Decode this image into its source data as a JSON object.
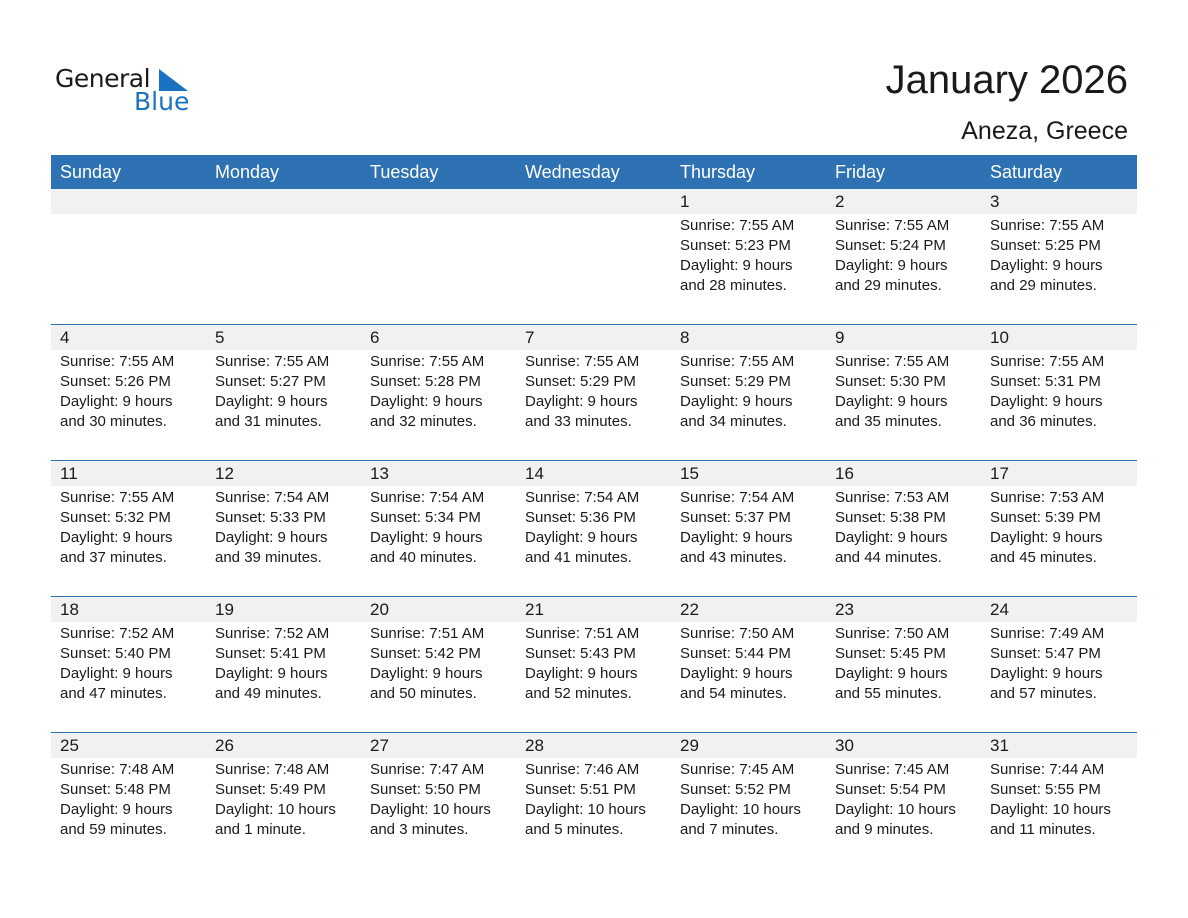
{
  "logo": {
    "general": "General",
    "blue": "Blue"
  },
  "title": "January 2026",
  "location": "Aneza, Greece",
  "colors": {
    "header": "#2e72b4",
    "band": "#f1f1f1",
    "logo_blue": "#1a72c0"
  },
  "weekdays": [
    "Sunday",
    "Monday",
    "Tuesday",
    "Wednesday",
    "Thursday",
    "Friday",
    "Saturday"
  ],
  "weeks": [
    [
      null,
      null,
      null,
      null,
      {
        "day": "1",
        "sunrise": "Sunrise: 7:55 AM",
        "sunset": "Sunset: 5:23 PM",
        "daylight": "Daylight: 9 hours\nand 28 minutes."
      },
      {
        "day": "2",
        "sunrise": "Sunrise: 7:55 AM",
        "sunset": "Sunset: 5:24 PM",
        "daylight": "Daylight: 9 hours\nand 29 minutes."
      },
      {
        "day": "3",
        "sunrise": "Sunrise: 7:55 AM",
        "sunset": "Sunset: 5:25 PM",
        "daylight": "Daylight: 9 hours\nand 29 minutes."
      }
    ],
    [
      {
        "day": "4",
        "sunrise": "Sunrise: 7:55 AM",
        "sunset": "Sunset: 5:26 PM",
        "daylight": "Daylight: 9 hours\nand 30 minutes."
      },
      {
        "day": "5",
        "sunrise": "Sunrise: 7:55 AM",
        "sunset": "Sunset: 5:27 PM",
        "daylight": "Daylight: 9 hours\nand 31 minutes."
      },
      {
        "day": "6",
        "sunrise": "Sunrise: 7:55 AM",
        "sunset": "Sunset: 5:28 PM",
        "daylight": "Daylight: 9 hours\nand 32 minutes."
      },
      {
        "day": "7",
        "sunrise": "Sunrise: 7:55 AM",
        "sunset": "Sunset: 5:29 PM",
        "daylight": "Daylight: 9 hours\nand 33 minutes."
      },
      {
        "day": "8",
        "sunrise": "Sunrise: 7:55 AM",
        "sunset": "Sunset: 5:29 PM",
        "daylight": "Daylight: 9 hours\nand 34 minutes."
      },
      {
        "day": "9",
        "sunrise": "Sunrise: 7:55 AM",
        "sunset": "Sunset: 5:30 PM",
        "daylight": "Daylight: 9 hours\nand 35 minutes."
      },
      {
        "day": "10",
        "sunrise": "Sunrise: 7:55 AM",
        "sunset": "Sunset: 5:31 PM",
        "daylight": "Daylight: 9 hours\nand 36 minutes."
      }
    ],
    [
      {
        "day": "11",
        "sunrise": "Sunrise: 7:55 AM",
        "sunset": "Sunset: 5:32 PM",
        "daylight": "Daylight: 9 hours\nand 37 minutes."
      },
      {
        "day": "12",
        "sunrise": "Sunrise: 7:54 AM",
        "sunset": "Sunset: 5:33 PM",
        "daylight": "Daylight: 9 hours\nand 39 minutes."
      },
      {
        "day": "13",
        "sunrise": "Sunrise: 7:54 AM",
        "sunset": "Sunset: 5:34 PM",
        "daylight": "Daylight: 9 hours\nand 40 minutes."
      },
      {
        "day": "14",
        "sunrise": "Sunrise: 7:54 AM",
        "sunset": "Sunset: 5:36 PM",
        "daylight": "Daylight: 9 hours\nand 41 minutes."
      },
      {
        "day": "15",
        "sunrise": "Sunrise: 7:54 AM",
        "sunset": "Sunset: 5:37 PM",
        "daylight": "Daylight: 9 hours\nand 43 minutes."
      },
      {
        "day": "16",
        "sunrise": "Sunrise: 7:53 AM",
        "sunset": "Sunset: 5:38 PM",
        "daylight": "Daylight: 9 hours\nand 44 minutes."
      },
      {
        "day": "17",
        "sunrise": "Sunrise: 7:53 AM",
        "sunset": "Sunset: 5:39 PM",
        "daylight": "Daylight: 9 hours\nand 45 minutes."
      }
    ],
    [
      {
        "day": "18",
        "sunrise": "Sunrise: 7:52 AM",
        "sunset": "Sunset: 5:40 PM",
        "daylight": "Daylight: 9 hours\nand 47 minutes."
      },
      {
        "day": "19",
        "sunrise": "Sunrise: 7:52 AM",
        "sunset": "Sunset: 5:41 PM",
        "daylight": "Daylight: 9 hours\nand 49 minutes."
      },
      {
        "day": "20",
        "sunrise": "Sunrise: 7:51 AM",
        "sunset": "Sunset: 5:42 PM",
        "daylight": "Daylight: 9 hours\nand 50 minutes."
      },
      {
        "day": "21",
        "sunrise": "Sunrise: 7:51 AM",
        "sunset": "Sunset: 5:43 PM",
        "daylight": "Daylight: 9 hours\nand 52 minutes."
      },
      {
        "day": "22",
        "sunrise": "Sunrise: 7:50 AM",
        "sunset": "Sunset: 5:44 PM",
        "daylight": "Daylight: 9 hours\nand 54 minutes."
      },
      {
        "day": "23",
        "sunrise": "Sunrise: 7:50 AM",
        "sunset": "Sunset: 5:45 PM",
        "daylight": "Daylight: 9 hours\nand 55 minutes."
      },
      {
        "day": "24",
        "sunrise": "Sunrise: 7:49 AM",
        "sunset": "Sunset: 5:47 PM",
        "daylight": "Daylight: 9 hours\nand 57 minutes."
      }
    ],
    [
      {
        "day": "25",
        "sunrise": "Sunrise: 7:48 AM",
        "sunset": "Sunset: 5:48 PM",
        "daylight": "Daylight: 9 hours\nand 59 minutes."
      },
      {
        "day": "26",
        "sunrise": "Sunrise: 7:48 AM",
        "sunset": "Sunset: 5:49 PM",
        "daylight": "Daylight: 10 hours\nand 1 minute."
      },
      {
        "day": "27",
        "sunrise": "Sunrise: 7:47 AM",
        "sunset": "Sunset: 5:50 PM",
        "daylight": "Daylight: 10 hours\nand 3 minutes."
      },
      {
        "day": "28",
        "sunrise": "Sunrise: 7:46 AM",
        "sunset": "Sunset: 5:51 PM",
        "daylight": "Daylight: 10 hours\nand 5 minutes."
      },
      {
        "day": "29",
        "sunrise": "Sunrise: 7:45 AM",
        "sunset": "Sunset: 5:52 PM",
        "daylight": "Daylight: 10 hours\nand 7 minutes."
      },
      {
        "day": "30",
        "sunrise": "Sunrise: 7:45 AM",
        "sunset": "Sunset: 5:54 PM",
        "daylight": "Daylight: 10 hours\nand 9 minutes."
      },
      {
        "day": "31",
        "sunrise": "Sunrise: 7:44 AM",
        "sunset": "Sunset: 5:55 PM",
        "daylight": "Daylight: 10 hours\nand 11 minutes."
      }
    ]
  ]
}
